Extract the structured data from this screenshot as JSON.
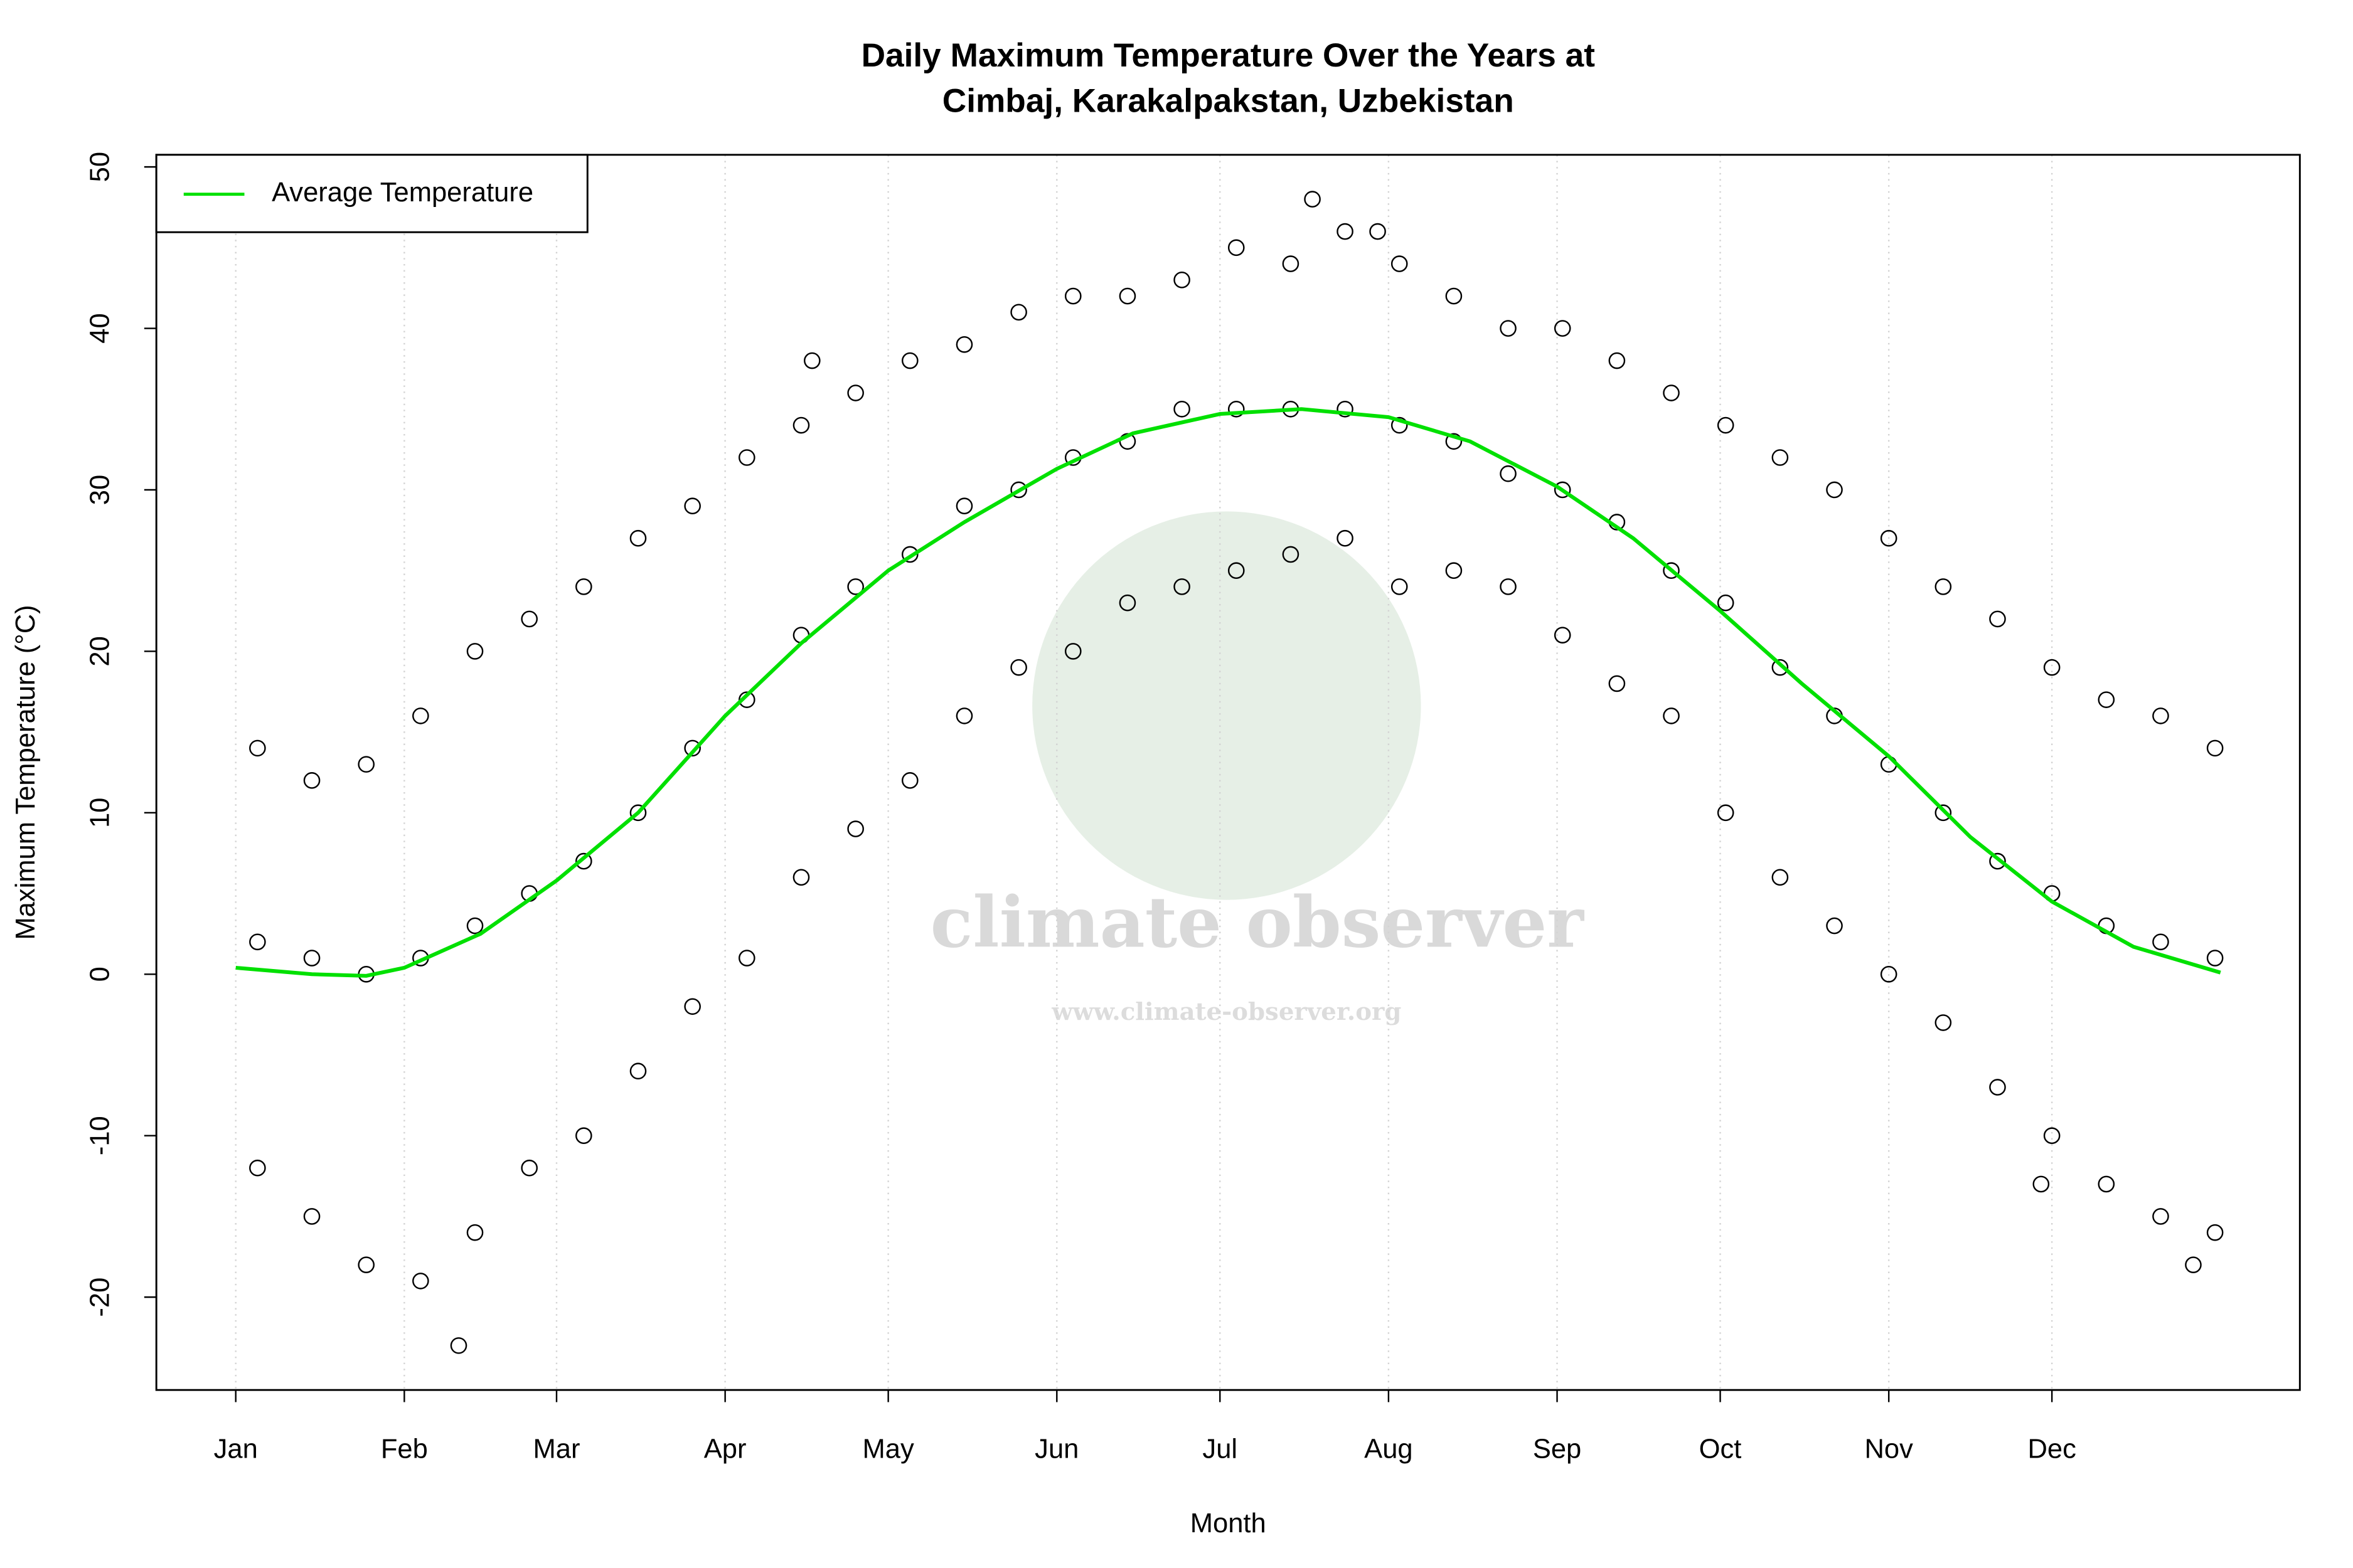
{
  "chart_data": {
    "type": "scatter",
    "title": [
      "Daily Maximum Temperature Over the Years at",
      "Cimbaj, Karakalpakstan, Uzbekistan"
    ],
    "x_label": "Month",
    "y_label": "Maximum Temperature (°C)",
    "watermark": [
      "climate observer",
      "www.climate-observer.org"
    ],
    "xlim": [
      -13.6,
      380.6
    ],
    "ylim": [
      -25.75,
      50.75
    ],
    "xticks": [
      {
        "value": 1,
        "label": "Jan"
      },
      {
        "value": 32,
        "label": "Feb"
      },
      {
        "value": 60,
        "label": "Mar"
      },
      {
        "value": 91,
        "label": "Apr"
      },
      {
        "value": 121,
        "label": "May"
      },
      {
        "value": 152,
        "label": "Jun"
      },
      {
        "value": 182,
        "label": "Jul"
      },
      {
        "value": 213,
        "label": "Aug"
      },
      {
        "value": 244,
        "label": "Sep"
      },
      {
        "value": 274,
        "label": "Oct"
      },
      {
        "value": 305,
        "label": "Nov"
      },
      {
        "value": 335,
        "label": "Dec"
      }
    ],
    "yticks": [
      -20,
      -10,
      0,
      10,
      20,
      30,
      40,
      50
    ],
    "grid": "x",
    "legend": "top-left",
    "points": {
      "color": "#000000",
      "x": [
        5,
        5,
        5,
        15,
        15,
        15,
        25,
        25,
        25,
        35,
        35,
        35,
        45,
        45,
        45,
        55,
        55,
        55,
        65,
        65,
        65,
        75,
        75,
        75,
        85,
        85,
        85,
        95,
        95,
        95,
        105,
        105,
        105,
        115,
        115,
        115,
        125,
        125,
        125,
        135,
        135,
        135,
        145,
        145,
        145,
        155,
        155,
        155,
        165,
        165,
        165,
        175,
        175,
        175,
        185,
        185,
        185,
        195,
        195,
        195,
        205,
        205,
        205,
        215,
        215,
        215,
        225,
        225,
        225,
        235,
        235,
        235,
        245,
        245,
        245,
        255,
        255,
        255,
        265,
        265,
        265,
        275,
        275,
        275,
        285,
        285,
        285,
        295,
        295,
        295,
        305,
        305,
        305,
        315,
        315,
        315,
        325,
        325,
        325,
        335,
        335,
        335,
        345,
        345,
        345,
        355,
        355,
        355,
        365,
        365,
        365,
        42,
        199,
        211,
        107,
        333,
        361
      ],
      "y": [
        14,
        2,
        -12,
        12,
        1,
        -15,
        13,
        0,
        -18,
        16,
        1,
        -19,
        20,
        3,
        -16,
        22,
        5,
        -12,
        24,
        7,
        -10,
        27,
        10,
        -6,
        29,
        14,
        -2,
        32,
        17,
        1,
        34,
        21,
        6,
        36,
        24,
        9,
        38,
        26,
        12,
        39,
        29,
        16,
        41,
        30,
        19,
        42,
        32,
        20,
        42,
        33,
        23,
        43,
        35,
        24,
        45,
        35,
        25,
        44,
        35,
        26,
        46,
        35,
        27,
        44,
        34,
        24,
        42,
        33,
        25,
        40,
        31,
        24,
        40,
        30,
        21,
        38,
        28,
        18,
        36,
        25,
        16,
        34,
        23,
        10,
        32,
        19,
        6,
        30,
        16,
        3,
        27,
        13,
        0,
        24,
        10,
        -3,
        22,
        7,
        -7,
        19,
        5,
        -10,
        17,
        3,
        -13,
        16,
        2,
        -15,
        14,
        1,
        -16,
        -23,
        48,
        46,
        38,
        -13,
        -18
      ]
    },
    "series": [
      {
        "name": "Average Temperature",
        "color": "#00e000",
        "x": [
          1,
          15,
          25,
          32,
          46,
          60,
          75,
          91,
          105,
          121,
          135,
          152,
          166,
          182,
          197,
          213,
          228,
          244,
          258,
          274,
          289,
          305,
          320,
          335,
          350,
          366
        ],
        "values": [
          0.4,
          0.0,
          -0.1,
          0.4,
          2.5,
          5.8,
          10,
          16,
          20.5,
          25,
          28,
          31.3,
          33.5,
          34.7,
          35,
          34.5,
          33,
          30.2,
          27,
          22.5,
          18,
          13.5,
          8.5,
          4.5,
          1.7,
          0.1
        ]
      }
    ]
  }
}
